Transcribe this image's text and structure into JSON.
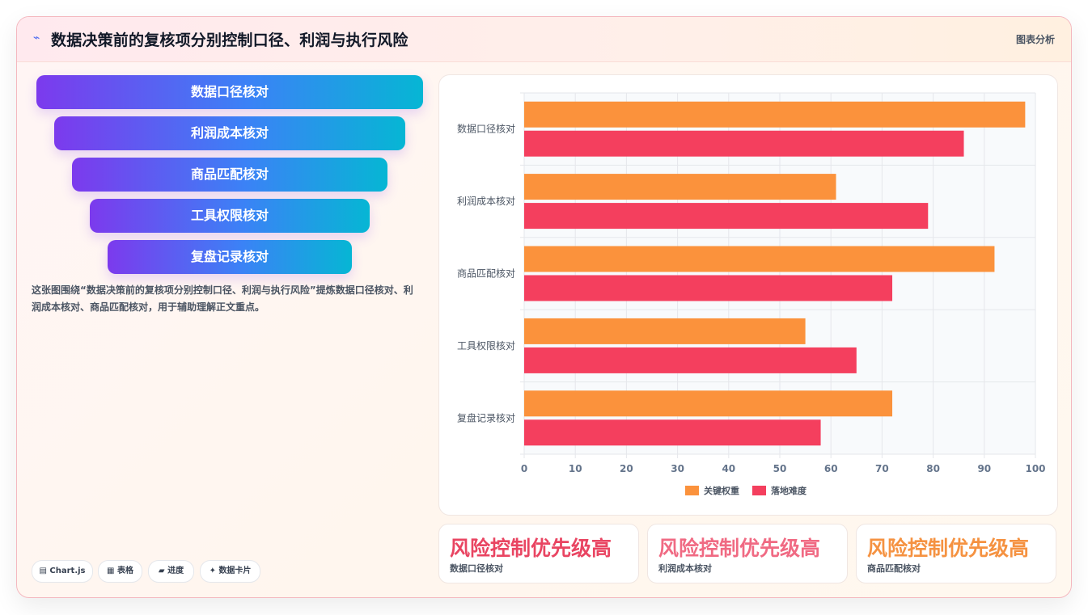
{
  "header": {
    "title": "数据决策前的复核项分别控制口径、利润与执行风险",
    "tag": "图表分析"
  },
  "funnel": [
    "数据口径核对",
    "利润成本核对",
    "商品匹配核对",
    "工具权限核对",
    "复盘记录核对"
  ],
  "description": "这张图围绕“数据决策前的复核项分别控制口径、利润与执行风险”提炼数据口径核对、利润成本核对、商品匹配核对，用于辅助理解正文重点。",
  "chips": [
    "Chart.js",
    "表格",
    "进度",
    "数据卡片"
  ],
  "chip_icons": [
    "table-icon",
    "grid-icon",
    "progress-icon",
    "sparkle-icon"
  ],
  "chart_data": {
    "type": "bar",
    "orientation": "horizontal",
    "categories": [
      "数据口径核对",
      "利润成本核对",
      "商品匹配核对",
      "工具权限核对",
      "复盘记录核对"
    ],
    "series": [
      {
        "name": "关键权重",
        "values": [
          98,
          61,
          92,
          55,
          72
        ],
        "color": "#fb923c"
      },
      {
        "name": "落地难度",
        "values": [
          86,
          79,
          72,
          65,
          58
        ],
        "color": "#f43f5e"
      }
    ],
    "xlim": [
      0,
      100
    ],
    "xticks": [
      0,
      10,
      20,
      30,
      40,
      50,
      60,
      70,
      80,
      90,
      100
    ],
    "grid": true,
    "legend": "bottom"
  },
  "stats": [
    {
      "value": "风险控制优先级高",
      "label": "数据口径核对",
      "color": "#e94562"
    },
    {
      "value": "风险控制优先级高",
      "label": "利润成本核对",
      "color": "#f06a83"
    },
    {
      "value": "风险控制优先级高",
      "label": "商品匹配核对",
      "color": "#f59241"
    }
  ]
}
